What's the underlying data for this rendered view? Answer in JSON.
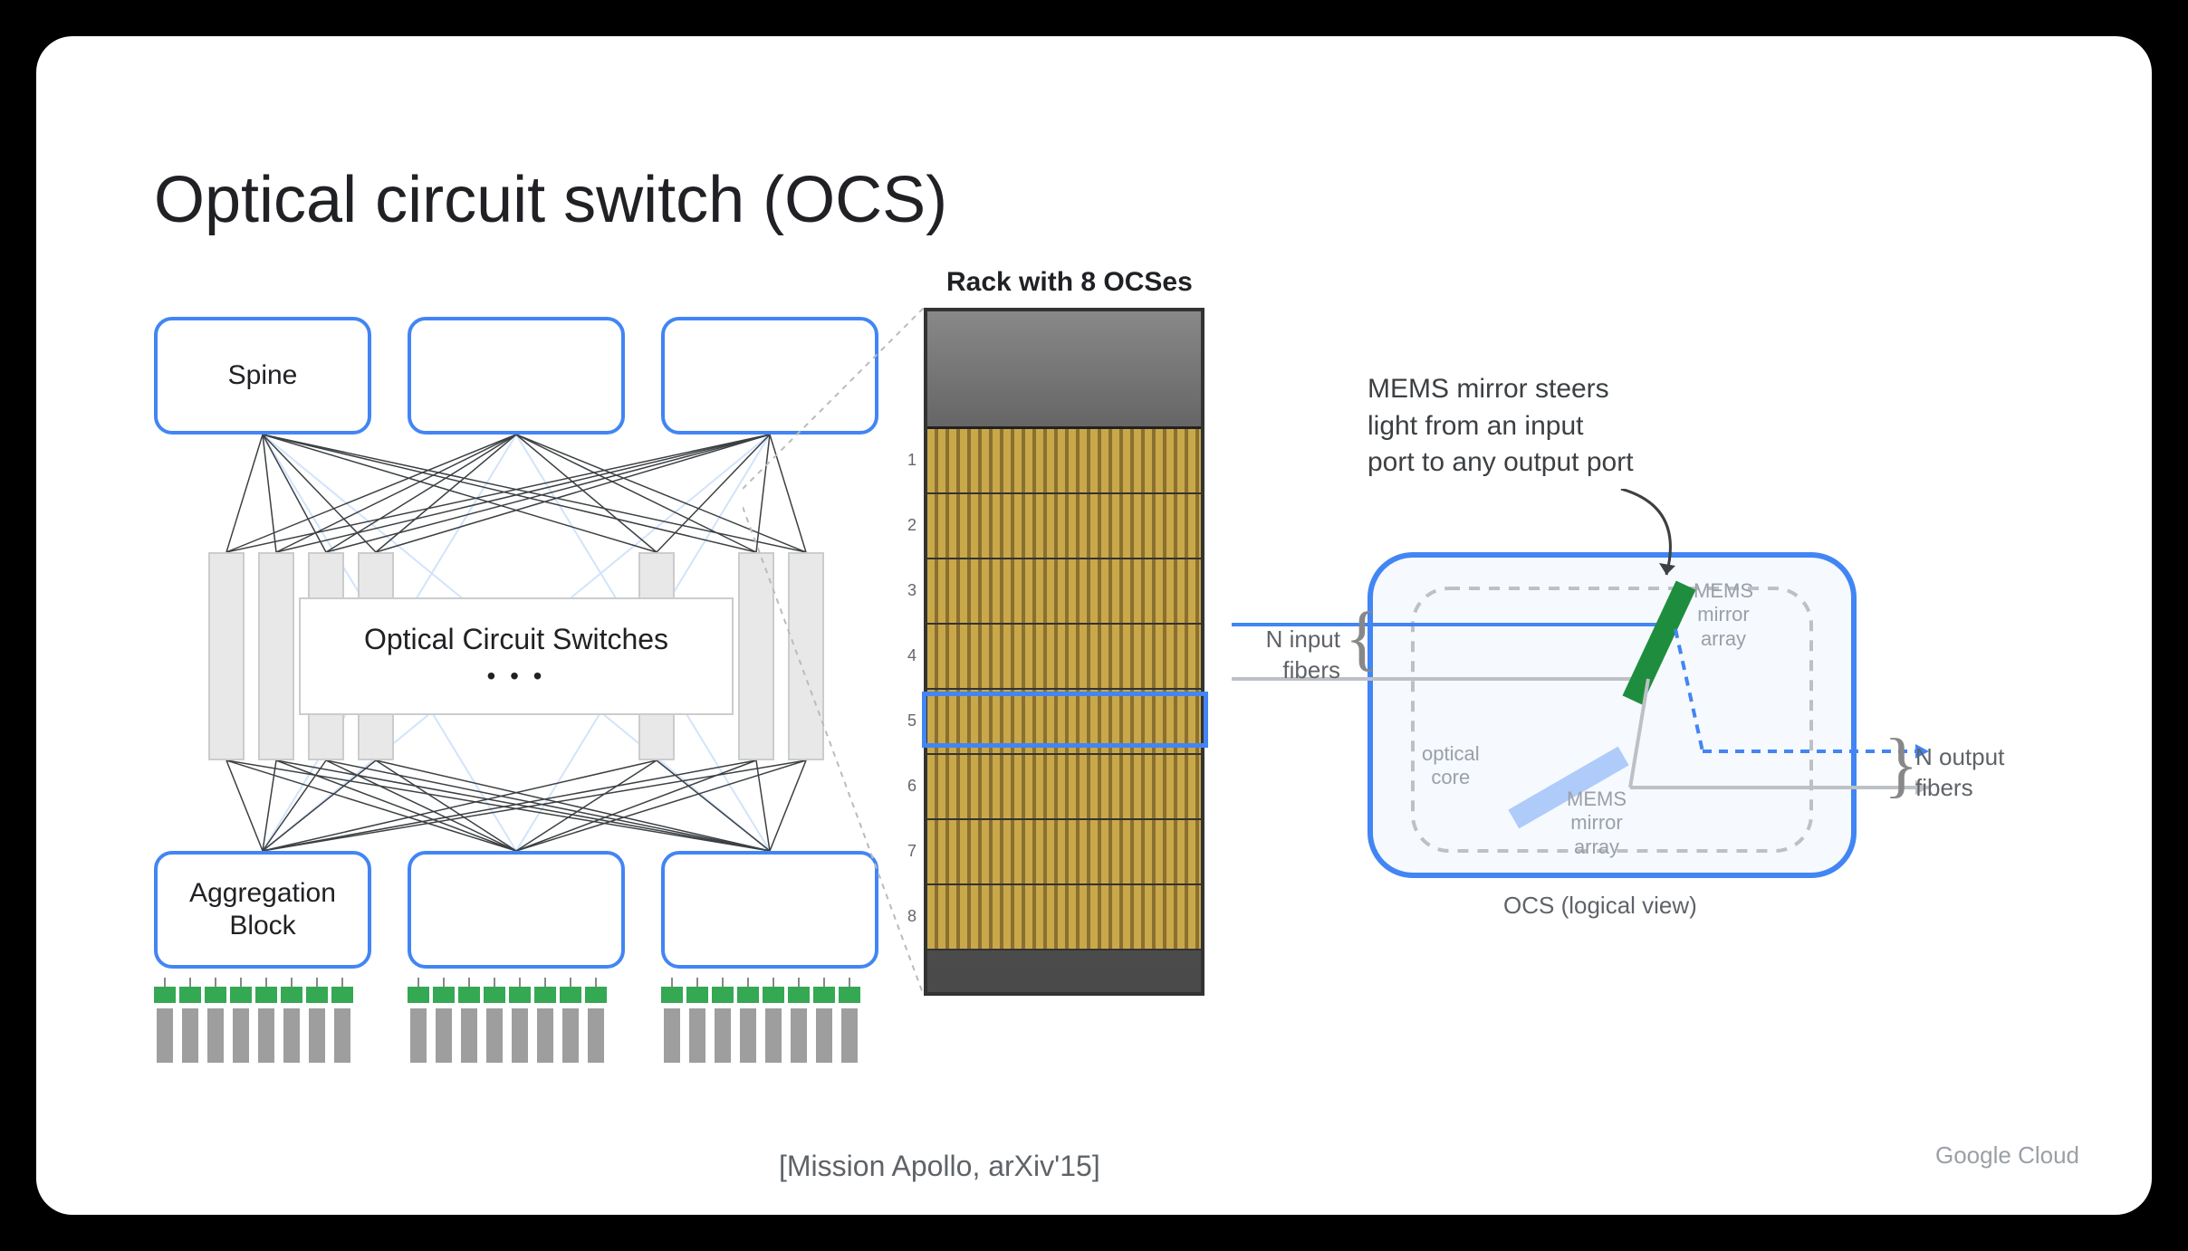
{
  "title": "Optical circuit switch (OCS)",
  "colors": {
    "blue": "#4285f4",
    "green": "#1e8e3e",
    "mirror_green": "#1e8e3e",
    "mirror_light": "#aecbfa",
    "gray_box": "#e8e8e8",
    "text_dark": "#202124",
    "text_gray": "#5f6368",
    "background": "#ffffff"
  },
  "network": {
    "spine_label": "Spine",
    "spine_count": 3,
    "ocs_label": "Optical Circuit Switches",
    "ocs_dots": "• • •",
    "ocs_rect_count": 7,
    "agg_label": "Aggregation\nBlock",
    "agg_count": 3,
    "servers_per_block": 8
  },
  "rack": {
    "title": "Rack with 8 OCSes",
    "unit_count": 8,
    "highlighted_unit": 4
  },
  "logical": {
    "mems_text": "MEMS mirror steers\nlight from an input\nport to any output port",
    "input_label": "N input\nfibers",
    "output_label": "N output\nfibers",
    "caption": "OCS (logical view)",
    "optical_core": "optical\ncore",
    "mems_array_label": "MEMS\nmirror\narray"
  },
  "citation": "[Mission Apollo, arXiv'15]",
  "brand": "Google Cloud"
}
